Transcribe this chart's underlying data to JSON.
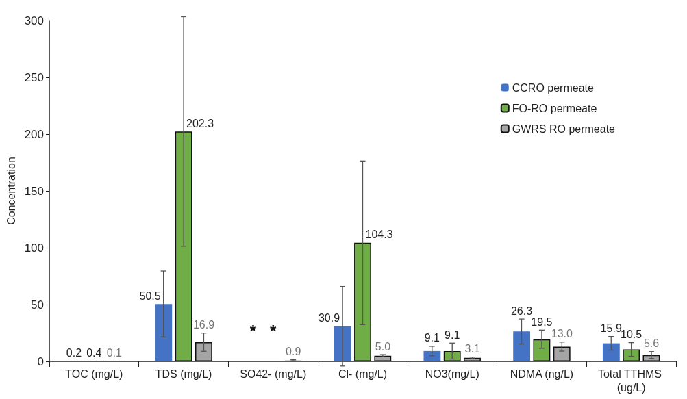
{
  "chart_data": {
    "type": "bar",
    "ylabel": "Concentration",
    "categories": [
      "TOC (mg/L)",
      "TDS (mg/L)",
      "SO42- (mg/L)",
      "Cl- (mg/L)",
      "NO3(mg/L)",
      "NDMA (ng/L)",
      "Total TTHMS (ug/L)"
    ],
    "series": [
      {
        "name": "CCRO permeate",
        "color": "#4472c4",
        "values": [
          0.2,
          50.5,
          null,
          30.9,
          9.1,
          26.3,
          15.9
        ],
        "errors": [
          null,
          29,
          null,
          35,
          4.2,
          11,
          6
        ],
        "value_labels": [
          "0.2",
          "50.5",
          null,
          "30.9",
          "9.1",
          "26.3",
          "15.9"
        ]
      },
      {
        "name": "FO-RO permeate",
        "color": "#70ad47",
        "values": [
          0.4,
          202.3,
          null,
          104.3,
          9.1,
          19.5,
          10.5
        ],
        "errors": [
          null,
          101,
          null,
          72,
          7,
          8,
          6
        ],
        "value_labels": [
          "0.4",
          "202.3",
          null,
          "104.3",
          "9.1",
          "19.5",
          "10.5"
        ]
      },
      {
        "name": "GWRS RO permeate",
        "color": "#a5a5a5",
        "values": [
          0.1,
          16.9,
          0.9,
          5.0,
          3.1,
          13.0,
          5.6
        ],
        "errors": [
          null,
          8,
          0.5,
          1,
          0.7,
          4,
          3
        ],
        "value_labels": [
          "0.1",
          "16.9",
          "0.9",
          "5.0",
          "3.1",
          "13.0",
          "5.6"
        ]
      }
    ],
    "annotations": [
      "*",
      "*"
    ],
    "ylim": [
      0,
      300
    ],
    "yticks": [
      0,
      50,
      100,
      150,
      200,
      250,
      300
    ],
    "grid": false,
    "legend": "top right"
  }
}
